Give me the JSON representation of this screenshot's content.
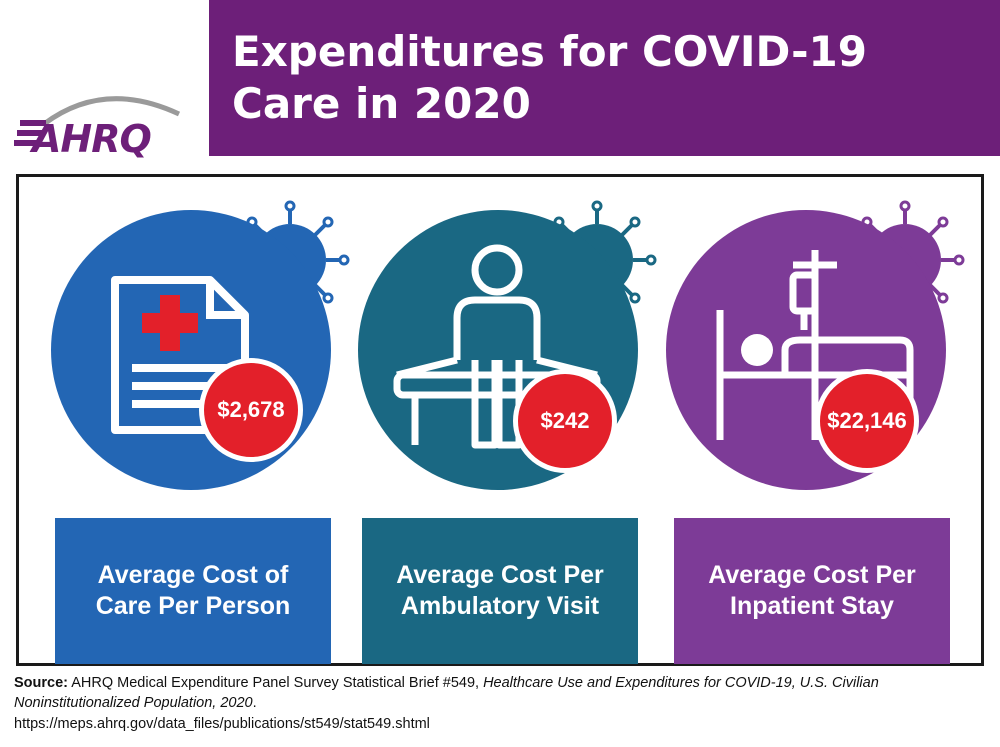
{
  "logo": {
    "text": "AHRQ",
    "icon": "ahrq-logo"
  },
  "header": {
    "title": "Expenditures for COVID-19 Care in 2020",
    "background": "#6d1f79"
  },
  "panels": [
    {
      "icon": "medical-document-icon",
      "cost": "$2,678",
      "label": "Average Cost of Care Per Person",
      "color": "#2366b4"
    },
    {
      "icon": "patient-exam-table-icon",
      "cost": "$242",
      "label": "Average Cost Per Ambulatory Visit",
      "color": "#1a6883"
    },
    {
      "icon": "hospital-bed-iv-icon",
      "cost": "$22,146",
      "label": "Average Cost Per Inpatient Stay",
      "color": "#7d3b97"
    }
  ],
  "badge_color": "#e3202a",
  "source": {
    "label": "Source:",
    "text": " AHRQ Medical Expenditure Panel Survey Statistical Brief #549, ",
    "title": "Healthcare Use and Expenditures for COVID-19, U.S. Civilian Noninstitutionalized Population, 2020",
    "period": ".",
    "url": "https://meps.ahrq.gov/data_files/publications/st549/stat549.shtml"
  }
}
